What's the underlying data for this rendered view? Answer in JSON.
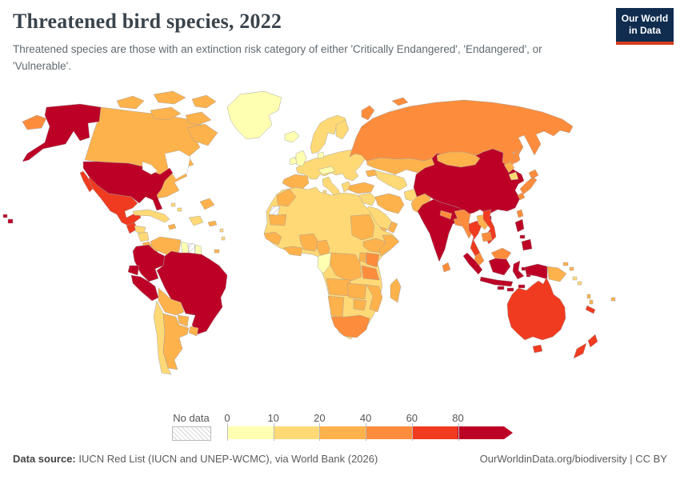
{
  "header": {
    "title": "Threatened bird species, 2022",
    "subtitle": "Threatened species are those with an extinction risk category of either 'Critically Endangered', 'Endangered', or 'Vulnerable'.",
    "logo_line1": "Our World",
    "logo_line2": "in Data",
    "logo_bg": "#102d50",
    "logo_accent": "#d73c1d"
  },
  "footer": {
    "source_label": "Data source:",
    "source_text": " IUCN Red List (IUCN and UNEP-WCMC), via World Bank (2026)",
    "link_text": "OurWorldinData.org/biodiversity | CC BY"
  },
  "chart_data": {
    "type": "choropleth",
    "title": "Threatened bird species, 2022",
    "legend_no_data_label": "No data",
    "legend_ticks": [
      "0",
      "10",
      "20",
      "40",
      "60",
      "80"
    ],
    "bins": [
      {
        "label": "0-10",
        "color": "#FFFFB2"
      },
      {
        "label": "10-20",
        "color": "#FED976"
      },
      {
        "label": "20-40",
        "color": "#FEB24C"
      },
      {
        "label": "40-60",
        "color": "#FD8D3C"
      },
      {
        "label": "60-80",
        "color": "#F03B20"
      },
      {
        "label": "80+",
        "color": "#BD0026"
      }
    ],
    "no_data_key": "no-data",
    "countries": {
      "United States": "80+",
      "Canada": "20-40",
      "Greenland": "0-10",
      "Mexico": "60-80",
      "Guatemala": "60-80",
      "Honduras": "10-20",
      "Nicaragua": "10-20",
      "Costa Rica": "20-40",
      "Panama": "20-40",
      "Cuba": "10-20",
      "Jamaica": "20-40",
      "Haiti": "10-20",
      "Dominican Republic": "10-20",
      "Bahamas": "10-20",
      "Puerto Rico": "20-40",
      "Dominica": "10-20",
      "Trinidad and Tobago": "20-40",
      "Colombia": "80+",
      "Venezuela": "20-40",
      "Guyana": "0-10",
      "Suriname": "no-data",
      "French Guiana": "0-10",
      "Ecuador": "80+",
      "Peru": "80+",
      "Brazil": "80+",
      "Bolivia": "20-40",
      "Paraguay": "20-40",
      "Uruguay": "20-40",
      "Argentina": "20-40",
      "Chile": "10-20",
      "Iceland": "0-10",
      "United Kingdom": "0-10",
      "Ireland": "0-10",
      "France": "10-20",
      "Germany": "10-20",
      "Poland": "10-20",
      "Ukraine": "10-20",
      "Norway": "10-20",
      "Sweden": "10-20",
      "Finland": "10-20",
      "Denmark": "0-10",
      "Austria": "0-10",
      "Spain": "20-40",
      "Portugal": "20-40",
      "Italy": "10-20",
      "Greece": "10-20",
      "Turkey": "20-40",
      "Russia": "40-60",
      "Kazakhstan": "20-40",
      "Uzbekistan": "10-20",
      "Azerbaijan": "20-40",
      "Iran": "20-40",
      "Iraq": "10-20",
      "Saudi Arabia": "10-20",
      "Yemen": "20-40",
      "Oman": "20-40",
      "Afghanistan": "10-20",
      "Pakistan": "20-40",
      "India": "80+",
      "Nepal": "40-60",
      "Bangladesh": "40-60",
      "Sri Lanka": "40-60",
      "China": "80+",
      "Mongolia": "20-40",
      "North Korea": "20-40",
      "South Korea": "10-20",
      "Japan": "40-60",
      "Taiwan": "40-60",
      "Myanmar": "40-60",
      "Thailand": "60-80",
      "Laos": "20-40",
      "Vietnam": "60-80",
      "Cambodia": "40-60",
      "Malaysia": "40-60",
      "Indonesia": "80+",
      "Philippines": "80+",
      "Papua New Guinea": "20-40",
      "Solomon Islands": "10-20",
      "Vanuatu": "20-40",
      "Fiji": "20-40",
      "New Caledonia": "60-80",
      "Australia": "60-80",
      "New Zealand": "60-80",
      "Morocco": "20-40",
      "Western Sahara": "no-data",
      "Algeria": "10-20",
      "Libya": "10-20",
      "Egypt": "10-20",
      "Mauritania": "20-40",
      "Mali": "10-20",
      "Niger": "10-20",
      "Chad": "10-20",
      "Sudan": "20-40",
      "Senegal": "20-40",
      "Guinea": "20-40",
      "Sierra Leone": "10-20",
      "Cote d'Ivoire": "20-40",
      "Ghana": "20-40",
      "Nigeria": "20-40",
      "Cameroon": "20-40",
      "Ethiopia": "20-40",
      "Somalia": "20-40",
      "Kenya": "40-60",
      "Uganda": "20-40",
      "Tanzania": "40-60",
      "DR Congo": "20-40",
      "Gabon": "0-10",
      "Angola": "20-40",
      "Zambia": "20-40",
      "Mozambique": "20-40",
      "Zimbabwe": "20-40",
      "Botswana": "10-20",
      "Namibia": "20-40",
      "South Africa": "40-60",
      "Madagascar": "20-40"
    }
  }
}
